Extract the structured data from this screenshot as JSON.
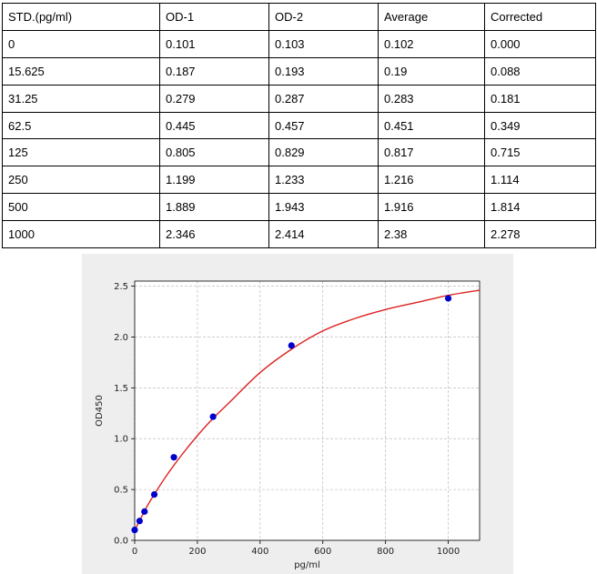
{
  "table": {
    "headers": [
      "STD.(pg/ml)",
      "OD-1",
      "OD-2",
      "Average",
      "Corrected"
    ],
    "rows": [
      [
        "0",
        "0.101",
        "0.103",
        "0.102",
        "0.000"
      ],
      [
        "15.625",
        "0.187",
        "0.193",
        "0.19",
        "0.088"
      ],
      [
        "31.25",
        "0.279",
        "0.287",
        "0.283",
        "0.181"
      ],
      [
        "62.5",
        "0.445",
        "0.457",
        "0.451",
        "0.349"
      ],
      [
        "125",
        "0.805",
        "0.829",
        "0.817",
        "0.715"
      ],
      [
        "250",
        "1.199",
        "1.233",
        "1.216",
        "1.114"
      ],
      [
        "500",
        "1.889",
        "1.943",
        "1.916",
        "1.814"
      ],
      [
        "1000",
        "2.346",
        "2.414",
        "2.38",
        "2.278"
      ]
    ]
  },
  "chart_data": {
    "type": "scatter",
    "title": "",
    "xlabel": "pg/ml",
    "ylabel": "OD450",
    "xlim": [
      0,
      1100
    ],
    "ylim": [
      0,
      2.55
    ],
    "xticks": [
      0,
      200,
      400,
      600,
      800,
      1000
    ],
    "xtick_labels": [
      "0",
      "200",
      "400",
      "600",
      "800",
      "1000"
    ],
    "yticks": [
      0.0,
      0.5,
      1.0,
      1.5,
      2.0,
      2.5
    ],
    "ytick_labels": [
      "0.0",
      "0.5",
      "1.0",
      "1.5",
      "2.0",
      "2.5"
    ],
    "grid": true,
    "series": [
      {
        "kind": "points",
        "x": [
          0,
          15.625,
          31.25,
          62.5,
          125,
          250,
          500,
          1000
        ],
        "y": [
          0.102,
          0.19,
          0.283,
          0.451,
          0.817,
          1.216,
          1.916,
          2.38
        ],
        "color": "#0000cc"
      },
      {
        "kind": "fit-curve",
        "x": [
          0,
          25,
          50,
          100,
          150,
          200,
          250,
          300,
          400,
          500,
          600,
          700,
          800,
          900,
          1000,
          1100
        ],
        "y": [
          0.1,
          0.25,
          0.39,
          0.63,
          0.84,
          1.03,
          1.2,
          1.35,
          1.65,
          1.88,
          2.06,
          2.18,
          2.27,
          2.34,
          2.41,
          2.46
        ],
        "color": "#dd2222"
      }
    ]
  }
}
